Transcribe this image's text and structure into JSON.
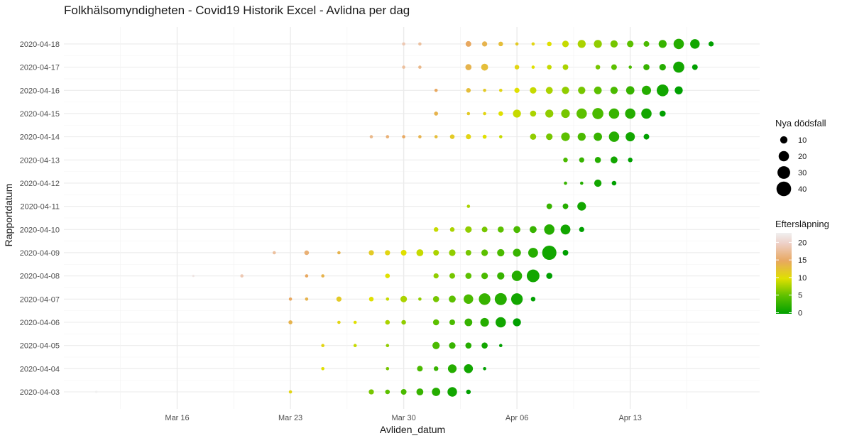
{
  "chart_data": {
    "type": "scatter",
    "title": "Folkhälsomyndigheten - Covid19 Historik Excel - Avlidna per dag",
    "xlabel": "Avliden_datum",
    "ylabel": "Rapportdatum",
    "x_axis_type": "date",
    "xlim": [
      "2020-03-09",
      "2020-04-21"
    ],
    "x_ticks": [
      {
        "date": "2020-03-16",
        "label": "Mar 16"
      },
      {
        "date": "2020-03-23",
        "label": "Mar 23"
      },
      {
        "date": "2020-03-30",
        "label": "Mar 30"
      },
      {
        "date": "2020-04-06",
        "label": "Apr 06"
      },
      {
        "date": "2020-04-13",
        "label": "Apr 13"
      }
    ],
    "y_categories": [
      "2020-04-03",
      "2020-04-04",
      "2020-04-05",
      "2020-04-06",
      "2020-04-07",
      "2020-04-08",
      "2020-04-09",
      "2020-04-10",
      "2020-04-11",
      "2020-04-12",
      "2020-04-13",
      "2020-04-14",
      "2020-04-15",
      "2020-04-16",
      "2020-04-17",
      "2020-04-18"
    ],
    "grid": true,
    "size_legend": {
      "title": "Nya dödsfall",
      "values": [
        10,
        20,
        30,
        40
      ],
      "labels": [
        "10",
        "20",
        "30",
        "40"
      ]
    },
    "color_legend": {
      "title": "Eftersläpning",
      "ticks": [
        0,
        5,
        10,
        15,
        20
      ],
      "labels": [
        "0",
        "5",
        "10",
        "15",
        "20"
      ],
      "range": [
        0,
        23
      ],
      "colors": [
        "#00a000",
        "#5cc000",
        "#e0e000",
        "#e8b070",
        "#f0f0f0"
      ]
    },
    "legend_position": "right",
    "series": [
      {
        "report": "2020-04-03",
        "points": [
          [
            "2020-03-11",
            1
          ],
          [
            "2020-03-23",
            2
          ],
          [
            "2020-03-28",
            5
          ],
          [
            "2020-03-29",
            4
          ],
          [
            "2020-03-30",
            6
          ],
          [
            "2020-03-31",
            9
          ],
          [
            "2020-04-01",
            13
          ],
          [
            "2020-04-02",
            17
          ],
          [
            "2020-04-03",
            4
          ]
        ]
      },
      {
        "report": "2020-04-04",
        "points": [
          [
            "2020-03-25",
            2
          ],
          [
            "2020-03-29",
            2
          ],
          [
            "2020-03-31",
            6
          ],
          [
            "2020-04-01",
            4
          ],
          [
            "2020-04-02",
            14
          ],
          [
            "2020-04-03",
            15
          ],
          [
            "2020-04-04",
            2
          ]
        ]
      },
      {
        "report": "2020-04-05",
        "points": [
          [
            "2020-03-25",
            2
          ],
          [
            "2020-03-27",
            2
          ],
          [
            "2020-03-29",
            2
          ],
          [
            "2020-04-01",
            10
          ],
          [
            "2020-04-02",
            8
          ],
          [
            "2020-04-03",
            7
          ],
          [
            "2020-04-04",
            7
          ],
          [
            "2020-04-05",
            2
          ]
        ]
      },
      {
        "report": "2020-04-06",
        "points": [
          [
            "2020-03-23",
            3
          ],
          [
            "2020-03-26",
            2
          ],
          [
            "2020-03-27",
            2
          ],
          [
            "2020-03-29",
            4
          ],
          [
            "2020-03-30",
            4
          ],
          [
            "2020-04-01",
            7
          ],
          [
            "2020-04-02",
            6
          ],
          [
            "2020-04-03",
            11
          ],
          [
            "2020-04-04",
            14
          ],
          [
            "2020-04-05",
            20
          ],
          [
            "2020-04-06",
            12
          ]
        ]
      },
      {
        "report": "2020-04-07",
        "points": [
          [
            "2020-03-23",
            2
          ],
          [
            "2020-03-24",
            2
          ],
          [
            "2020-03-26",
            5
          ],
          [
            "2020-03-28",
            4
          ],
          [
            "2020-03-29",
            2
          ],
          [
            "2020-03-30",
            8
          ],
          [
            "2020-03-31",
            2
          ],
          [
            "2020-04-01",
            7
          ],
          [
            "2020-04-02",
            9
          ],
          [
            "2020-04-03",
            17
          ],
          [
            "2020-04-04",
            25
          ],
          [
            "2020-04-05",
            27
          ],
          [
            "2020-04-06",
            25
          ],
          [
            "2020-04-07",
            4
          ]
        ]
      },
      {
        "report": "2020-04-08",
        "points": [
          [
            "2020-03-17",
            1
          ],
          [
            "2020-03-20",
            2
          ],
          [
            "2020-03-24",
            2
          ],
          [
            "2020-03-25",
            2
          ],
          [
            "2020-03-29",
            4
          ],
          [
            "2020-04-01",
            5
          ],
          [
            "2020-04-02",
            6
          ],
          [
            "2020-04-03",
            7
          ],
          [
            "2020-04-04",
            8
          ],
          [
            "2020-04-05",
            10
          ],
          [
            "2020-04-06",
            20
          ],
          [
            "2020-04-07",
            30
          ],
          [
            "2020-04-08",
            7
          ]
        ]
      },
      {
        "report": "2020-04-09",
        "points": [
          [
            "2020-03-22",
            2
          ],
          [
            "2020-03-24",
            4
          ],
          [
            "2020-03-26",
            2
          ],
          [
            "2020-03-28",
            5
          ],
          [
            "2020-03-29",
            5
          ],
          [
            "2020-03-30",
            6
          ],
          [
            "2020-03-31",
            9
          ],
          [
            "2020-04-01",
            6
          ],
          [
            "2020-04-02",
            8
          ],
          [
            "2020-04-03",
            6
          ],
          [
            "2020-04-04",
            8
          ],
          [
            "2020-04-05",
            10
          ],
          [
            "2020-04-06",
            12
          ],
          [
            "2020-04-07",
            18
          ],
          [
            "2020-04-08",
            38
          ],
          [
            "2020-04-09",
            6
          ]
        ]
      },
      {
        "report": "2020-04-10",
        "points": [
          [
            "2020-04-01",
            4
          ],
          [
            "2020-04-02",
            4
          ],
          [
            "2020-04-03",
            8
          ],
          [
            "2020-04-04",
            6
          ],
          [
            "2020-04-05",
            7
          ],
          [
            "2020-04-06",
            9
          ],
          [
            "2020-04-07",
            9
          ],
          [
            "2020-04-08",
            20
          ],
          [
            "2020-04-09",
            18
          ],
          [
            "2020-04-10",
            5
          ]
        ]
      },
      {
        "report": "2020-04-11",
        "points": [
          [
            "2020-04-03",
            2
          ],
          [
            "2020-04-08",
            6
          ],
          [
            "2020-04-09",
            6
          ],
          [
            "2020-04-10",
            14
          ]
        ]
      },
      {
        "report": "2020-04-12",
        "points": [
          [
            "2020-04-09",
            2
          ],
          [
            "2020-04-10",
            2
          ],
          [
            "2020-04-11",
            10
          ],
          [
            "2020-04-12",
            4
          ]
        ]
      },
      {
        "report": "2020-04-13",
        "points": [
          [
            "2020-04-09",
            4
          ],
          [
            "2020-04-10",
            5
          ],
          [
            "2020-04-11",
            7
          ],
          [
            "2020-04-12",
            9
          ],
          [
            "2020-04-13",
            4
          ]
        ]
      },
      {
        "report": "2020-04-14",
        "points": [
          [
            "2020-03-28",
            2
          ],
          [
            "2020-03-29",
            2
          ],
          [
            "2020-03-30",
            2
          ],
          [
            "2020-03-31",
            2
          ],
          [
            "2020-04-01",
            2
          ],
          [
            "2020-04-02",
            4
          ],
          [
            "2020-04-03",
            5
          ],
          [
            "2020-04-04",
            3
          ],
          [
            "2020-04-05",
            2
          ],
          [
            "2020-04-07",
            7
          ],
          [
            "2020-04-08",
            8
          ],
          [
            "2020-04-09",
            14
          ],
          [
            "2020-04-10",
            12
          ],
          [
            "2020-04-11",
            13
          ],
          [
            "2020-04-12",
            20
          ],
          [
            "2020-04-13",
            16
          ],
          [
            "2020-04-14",
            6
          ]
        ]
      },
      {
        "report": "2020-04-15",
        "points": [
          [
            "2020-04-01",
            3
          ],
          [
            "2020-04-03",
            2
          ],
          [
            "2020-04-04",
            2
          ],
          [
            "2020-04-05",
            4
          ],
          [
            "2020-04-06",
            12
          ],
          [
            "2020-04-07",
            7
          ],
          [
            "2020-04-08",
            12
          ],
          [
            "2020-04-09",
            14
          ],
          [
            "2020-04-10",
            20
          ],
          [
            "2020-04-11",
            23
          ],
          [
            "2020-04-12",
            20
          ],
          [
            "2020-04-13",
            20
          ],
          [
            "2020-04-14",
            20
          ],
          [
            "2020-04-15",
            7
          ]
        ]
      },
      {
        "report": "2020-04-16",
        "points": [
          [
            "2020-04-01",
            2
          ],
          [
            "2020-04-03",
            4
          ],
          [
            "2020-04-04",
            2
          ],
          [
            "2020-04-05",
            2
          ],
          [
            "2020-04-06",
            5
          ],
          [
            "2020-04-07",
            8
          ],
          [
            "2020-04-08",
            9
          ],
          [
            "2020-04-09",
            10
          ],
          [
            "2020-04-10",
            10
          ],
          [
            "2020-04-11",
            11
          ],
          [
            "2020-04-12",
            10
          ],
          [
            "2020-04-13",
            13
          ],
          [
            "2020-04-14",
            16
          ],
          [
            "2020-04-15",
            26
          ],
          [
            "2020-04-16",
            12
          ]
        ]
      },
      {
        "report": "2020-04-17",
        "points": [
          [
            "2020-03-30",
            2
          ],
          [
            "2020-03-31",
            2
          ],
          [
            "2020-04-03",
            7
          ],
          [
            "2020-04-04",
            9
          ],
          [
            "2020-04-06",
            4
          ],
          [
            "2020-04-07",
            2
          ],
          [
            "2020-04-08",
            4
          ],
          [
            "2020-04-09",
            6
          ],
          [
            "2020-04-11",
            4
          ],
          [
            "2020-04-12",
            6
          ],
          [
            "2020-04-13",
            2
          ],
          [
            "2020-04-14",
            7
          ],
          [
            "2020-04-15",
            8
          ],
          [
            "2020-04-16",
            23
          ],
          [
            "2020-04-17",
            6
          ]
        ]
      },
      {
        "report": "2020-04-18",
        "points": [
          [
            "2020-03-30",
            2
          ],
          [
            "2020-03-31",
            2
          ],
          [
            "2020-04-03",
            6
          ],
          [
            "2020-04-04",
            5
          ],
          [
            "2020-04-05",
            4
          ],
          [
            "2020-04-06",
            2
          ],
          [
            "2020-04-07",
            2
          ],
          [
            "2020-04-08",
            4
          ],
          [
            "2020-04-09",
            8
          ],
          [
            "2020-04-10",
            12
          ],
          [
            "2020-04-11",
            12
          ],
          [
            "2020-04-12",
            10
          ],
          [
            "2020-04-13",
            8
          ],
          [
            "2020-04-14",
            6
          ],
          [
            "2020-04-15",
            12
          ],
          [
            "2020-04-16",
            20
          ],
          [
            "2020-04-17",
            17
          ],
          [
            "2020-04-18",
            5
          ]
        ]
      }
    ]
  }
}
